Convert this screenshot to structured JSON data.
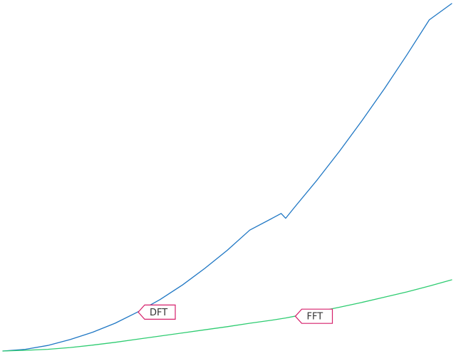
{
  "chart_data": {
    "type": "line",
    "title": "",
    "xlabel": "",
    "ylabel": "",
    "grid": false,
    "legend": "none",
    "xlim": [
      0,
      100
    ],
    "ylim": [
      0,
      1000
    ],
    "x": [
      0,
      5,
      10,
      15,
      20,
      25,
      30,
      35,
      40,
      45,
      50,
      55,
      60,
      62,
      63,
      65,
      70,
      75,
      80,
      85,
      90,
      95,
      100
    ],
    "series": [
      {
        "name": "DFT",
        "color": "#1f77c4",
        "label_at_index": 6,
        "values": [
          0,
          5,
          16,
          33,
          54,
          80,
          112,
          148,
          190,
          238,
          290,
          348,
          382,
          396,
          382,
          414,
          492,
          575,
          663,
          755,
          852,
          953,
          1000
        ]
      },
      {
        "name": "FFT",
        "color": "#2ecc71",
        "label_at_index": 15,
        "values": [
          0,
          2,
          5,
          10,
          17,
          25,
          34,
          43,
          52,
          61,
          70,
          80,
          89,
          93,
          95,
          100,
          113,
          126,
          140,
          155,
          170,
          187,
          205
        ]
      }
    ],
    "label_border_color": "#d6206b"
  }
}
